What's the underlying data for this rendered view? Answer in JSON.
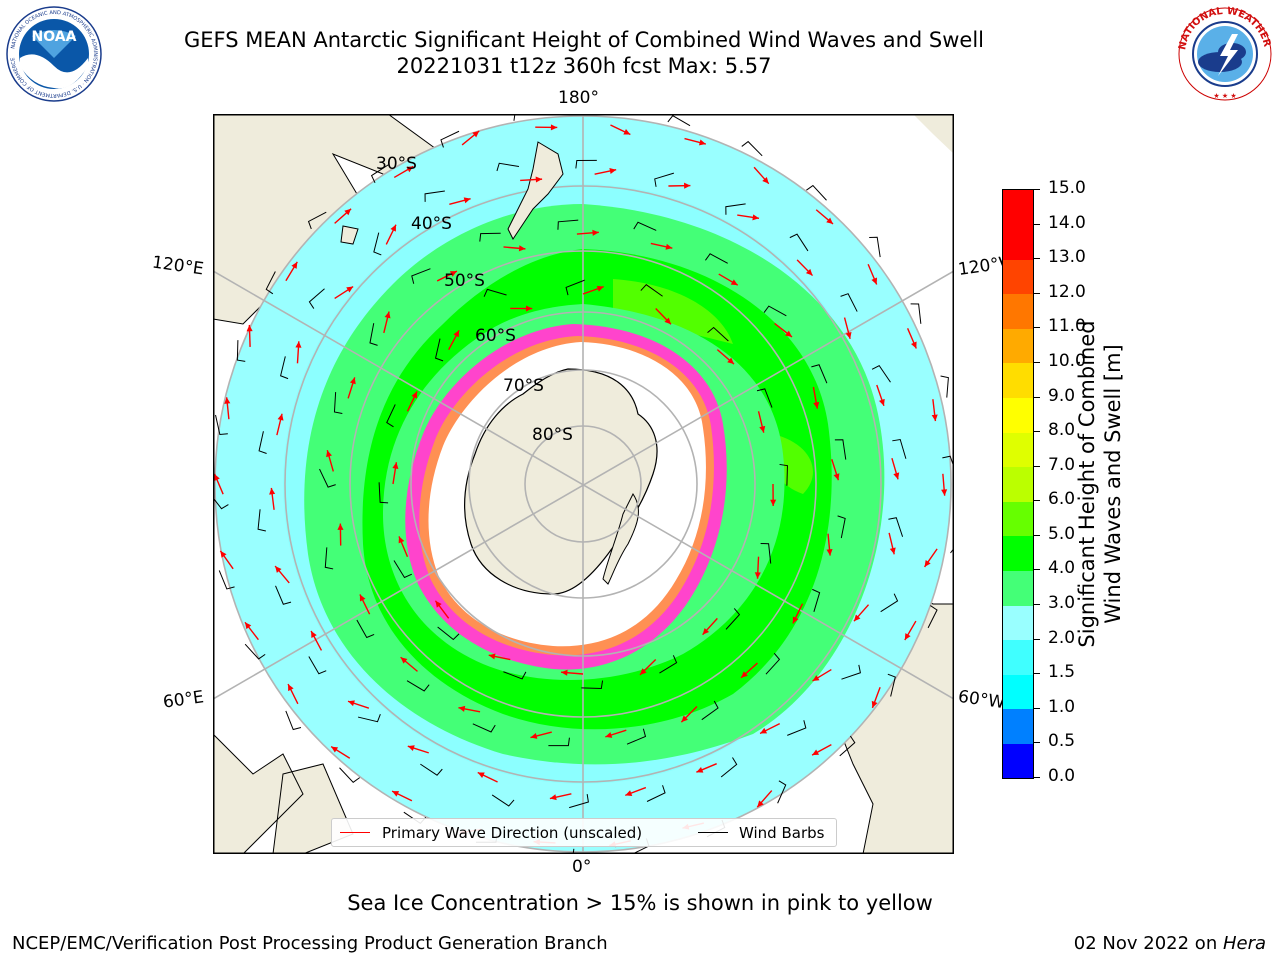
{
  "header": {
    "title_line1": "GEFS MEAN Antarctic Significant Height of Combined Wind Waves and Swell",
    "title_line2": "20221031 t12z 360h fcst   Max: 5.57"
  },
  "logos": {
    "left": {
      "name": "noaa-logo",
      "text": "NOAA",
      "ring_text": "NATIONAL OCEANIC AND ATMOSPHERIC ADMINISTRATION · U.S. DEPARTMENT OF COMMERCE"
    },
    "right": {
      "name": "nws-logo",
      "ring_text": "NATIONAL WEATHER SERVICE"
    }
  },
  "map": {
    "projection": "south-polar-stereographic",
    "longitude_labels": {
      "top": "180°",
      "upper_left": "120°E",
      "upper_right": "120°W",
      "lower_left": "60°E",
      "lower_right": "60°W",
      "bottom": "0°"
    },
    "latitude_labels": [
      "30°S",
      "40°S",
      "50°S",
      "60°S",
      "70°S",
      "80°S"
    ],
    "colors": {
      "land": "#efecdc",
      "ice_free_land": "#ffffff",
      "graticule": "#b3b3b3",
      "coast": "#000000",
      "wave_arrow": "#ff0000",
      "wind_barb": "#000000",
      "sea_ice": "#ff44cc"
    }
  },
  "legend": {
    "primary_wave": "Primary Wave Direction (unscaled)",
    "wind_barbs": "Wind Barbs",
    "primary_wave_color": "#ff0000",
    "wind_barbs_color": "#000000"
  },
  "colorbar": {
    "label_line1": "Significant Height of Combined",
    "label_line2": "Wind Waves and Swell [m]",
    "ticks": [
      "0.0",
      "0.5",
      "1.0",
      "1.5",
      "2.0",
      "3.0",
      "4.0",
      "5.0",
      "6.0",
      "7.0",
      "8.0",
      "9.0",
      "10.0",
      "11.0",
      "12.0",
      "13.0",
      "14.0",
      "15.0"
    ],
    "colors": [
      "#0000ff",
      "#0080ff",
      "#00ffff",
      "#40ffff",
      "#99ffff",
      "#44ff77",
      "#00ff00",
      "#66ff00",
      "#bbff00",
      "#dfff00",
      "#ffff00",
      "#ffdd00",
      "#ffaa00",
      "#ff7700",
      "#ff4400",
      "#ff0000",
      "#ff0000"
    ]
  },
  "caption": "Sea Ice Concentration > 15% is shown in pink to yellow",
  "footer": {
    "left": "NCEP/EMC/Verification Post Processing Product Generation Branch",
    "right_date": "02 Nov 2022 on ",
    "right_host": "Hera"
  }
}
